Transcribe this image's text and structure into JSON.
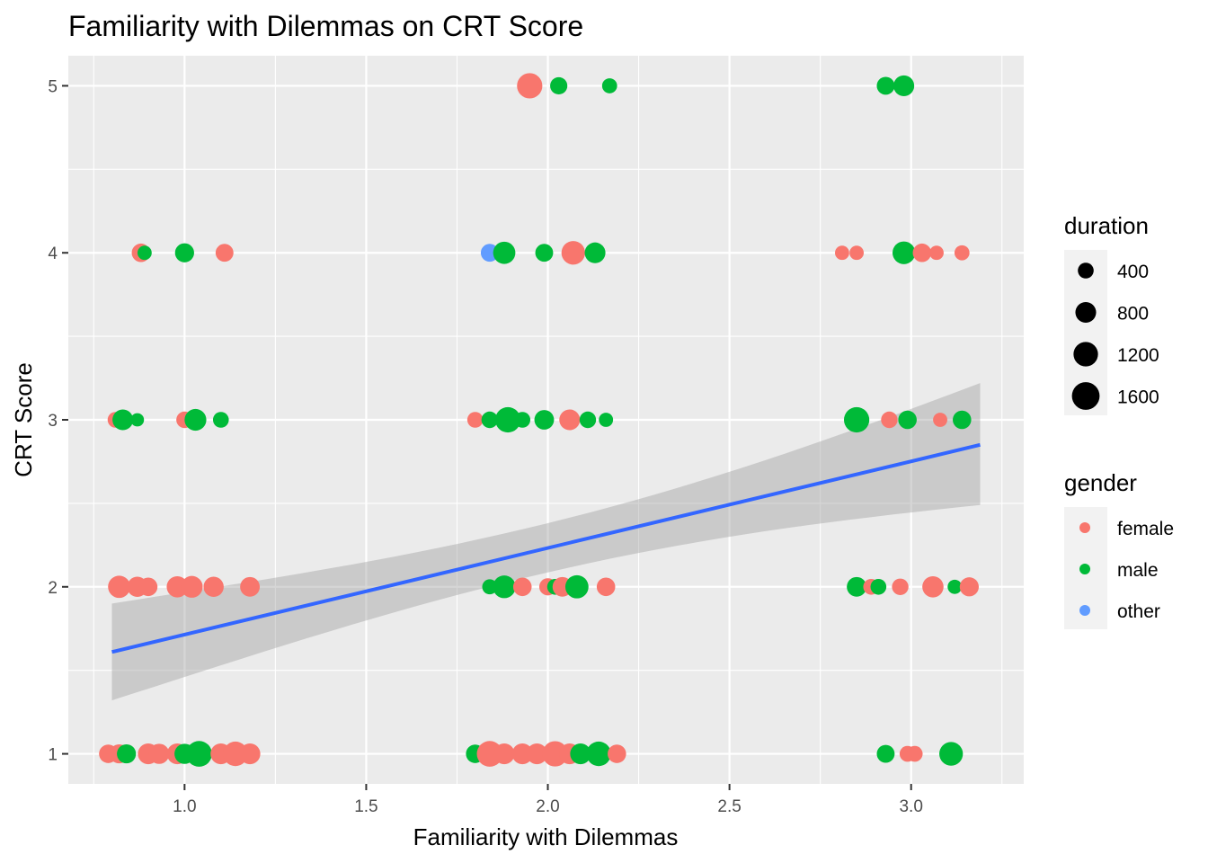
{
  "chart_data": {
    "type": "scatter",
    "title": "Familiarity with Dilemmas on CRT Score",
    "xlabel": "Familiarity with Dilemmas",
    "ylabel": "CRT Score",
    "xlim": [
      0.68,
      3.31
    ],
    "ylim": [
      0.82,
      5.18
    ],
    "x_ticks": [
      1.0,
      1.5,
      2.0,
      2.5,
      3.0
    ],
    "x_tick_labels": [
      "1.0",
      "1.5",
      "2.0",
      "2.5",
      "3.0"
    ],
    "y_ticks": [
      1,
      2,
      3,
      4,
      5
    ],
    "y_tick_labels": [
      "1",
      "2",
      "3",
      "4",
      "5"
    ],
    "grid": true,
    "legend_position": "right",
    "colors": {
      "female": "#F8766D",
      "male": "#00BA38",
      "other": "#619CFF",
      "fit_line": "#3366FF",
      "ribbon": "#999999",
      "panel": "#EBEBEB",
      "grid": "#FFFFFF"
    },
    "size_legend": {
      "title": "duration",
      "values": [
        400,
        800,
        1200,
        1600
      ],
      "labels": [
        "400",
        "800",
        "1200",
        "1600"
      ]
    },
    "color_legend": {
      "title": "gender",
      "labels": [
        "female",
        "male",
        "other"
      ]
    },
    "fit": {
      "method": "lm",
      "x_range": [
        0.8,
        3.19
      ],
      "y_start": 1.61,
      "y_end": 2.85,
      "ci_lower_start": 1.32,
      "ci_upper_start": 1.9,
      "ci_lower_end": 2.49,
      "ci_upper_end": 3.22
    },
    "points": [
      {
        "x": 1.95,
        "y": 5,
        "gender": "female",
        "duration": 1300
      },
      {
        "x": 2.03,
        "y": 5,
        "gender": "male",
        "duration": 500
      },
      {
        "x": 2.17,
        "y": 5,
        "gender": "male",
        "duration": 350
      },
      {
        "x": 2.93,
        "y": 5,
        "gender": "male",
        "duration": 550
      },
      {
        "x": 2.98,
        "y": 5,
        "gender": "male",
        "duration": 800
      },
      {
        "x": 0.88,
        "y": 4,
        "gender": "female",
        "duration": 600
      },
      {
        "x": 0.89,
        "y": 4,
        "gender": "male",
        "duration": 300
      },
      {
        "x": 1.0,
        "y": 4,
        "gender": "male",
        "duration": 650
      },
      {
        "x": 1.11,
        "y": 4,
        "gender": "female",
        "duration": 550
      },
      {
        "x": 1.84,
        "y": 4,
        "gender": "other",
        "duration": 550
      },
      {
        "x": 1.88,
        "y": 4,
        "gender": "male",
        "duration": 950
      },
      {
        "x": 1.99,
        "y": 4,
        "gender": "male",
        "duration": 550
      },
      {
        "x": 2.07,
        "y": 4,
        "gender": "female",
        "duration": 1100
      },
      {
        "x": 2.13,
        "y": 4,
        "gender": "male",
        "duration": 800
      },
      {
        "x": 2.81,
        "y": 4,
        "gender": "female",
        "duration": 300
      },
      {
        "x": 2.85,
        "y": 4,
        "gender": "female",
        "duration": 300
      },
      {
        "x": 2.98,
        "y": 4,
        "gender": "male",
        "duration": 1000
      },
      {
        "x": 3.03,
        "y": 4,
        "gender": "female",
        "duration": 600
      },
      {
        "x": 3.07,
        "y": 4,
        "gender": "female",
        "duration": 300
      },
      {
        "x": 3.14,
        "y": 4,
        "gender": "female",
        "duration": 350
      },
      {
        "x": 0.81,
        "y": 3,
        "gender": "female",
        "duration": 400
      },
      {
        "x": 0.83,
        "y": 3,
        "gender": "male",
        "duration": 800
      },
      {
        "x": 0.87,
        "y": 3,
        "gender": "male",
        "duration": 250
      },
      {
        "x": 1.0,
        "y": 3,
        "gender": "female",
        "duration": 450
      },
      {
        "x": 1.03,
        "y": 3,
        "gender": "male",
        "duration": 900
      },
      {
        "x": 1.1,
        "y": 3,
        "gender": "male",
        "duration": 400
      },
      {
        "x": 1.8,
        "y": 3,
        "gender": "female",
        "duration": 400
      },
      {
        "x": 1.84,
        "y": 3,
        "gender": "male",
        "duration": 450
      },
      {
        "x": 1.89,
        "y": 3,
        "gender": "male",
        "duration": 1300
      },
      {
        "x": 1.93,
        "y": 3,
        "gender": "male",
        "duration": 400
      },
      {
        "x": 1.99,
        "y": 3,
        "gender": "male",
        "duration": 700
      },
      {
        "x": 2.06,
        "y": 3,
        "gender": "female",
        "duration": 800
      },
      {
        "x": 2.11,
        "y": 3,
        "gender": "male",
        "duration": 450
      },
      {
        "x": 2.16,
        "y": 3,
        "gender": "male",
        "duration": 300
      },
      {
        "x": 2.85,
        "y": 3,
        "gender": "male",
        "duration": 1300
      },
      {
        "x": 2.94,
        "y": 3,
        "gender": "female",
        "duration": 450
      },
      {
        "x": 2.99,
        "y": 3,
        "gender": "male",
        "duration": 600
      },
      {
        "x": 3.08,
        "y": 3,
        "gender": "female",
        "duration": 300
      },
      {
        "x": 3.14,
        "y": 3,
        "gender": "male",
        "duration": 600
      },
      {
        "x": 0.82,
        "y": 2,
        "gender": "other",
        "duration": 900
      },
      {
        "x": 0.82,
        "y": 2,
        "gender": "female",
        "duration": 950
      },
      {
        "x": 0.87,
        "y": 2,
        "gender": "female",
        "duration": 750
      },
      {
        "x": 0.9,
        "y": 2,
        "gender": "female",
        "duration": 600
      },
      {
        "x": 0.98,
        "y": 2,
        "gender": "female",
        "duration": 850
      },
      {
        "x": 1.02,
        "y": 2,
        "gender": "female",
        "duration": 900
      },
      {
        "x": 1.08,
        "y": 2,
        "gender": "female",
        "duration": 750
      },
      {
        "x": 1.18,
        "y": 2,
        "gender": "female",
        "duration": 700
      },
      {
        "x": 1.84,
        "y": 2,
        "gender": "male",
        "duration": 350
      },
      {
        "x": 1.88,
        "y": 2,
        "gender": "male",
        "duration": 1000
      },
      {
        "x": 1.93,
        "y": 2,
        "gender": "female",
        "duration": 600
      },
      {
        "x": 2.0,
        "y": 2,
        "gender": "female",
        "duration": 500
      },
      {
        "x": 2.02,
        "y": 2,
        "gender": "male",
        "duration": 400
      },
      {
        "x": 2.04,
        "y": 2,
        "gender": "female",
        "duration": 700
      },
      {
        "x": 2.08,
        "y": 2,
        "gender": "male",
        "duration": 1050
      },
      {
        "x": 2.16,
        "y": 2,
        "gender": "female",
        "duration": 600
      },
      {
        "x": 2.85,
        "y": 2,
        "gender": "male",
        "duration": 700
      },
      {
        "x": 2.89,
        "y": 2,
        "gender": "female",
        "duration": 400
      },
      {
        "x": 2.91,
        "y": 2,
        "gender": "male",
        "duration": 400
      },
      {
        "x": 2.97,
        "y": 2,
        "gender": "female",
        "duration": 450
      },
      {
        "x": 3.06,
        "y": 2,
        "gender": "female",
        "duration": 850
      },
      {
        "x": 3.12,
        "y": 2,
        "gender": "male",
        "duration": 300
      },
      {
        "x": 3.16,
        "y": 2,
        "gender": "female",
        "duration": 650
      },
      {
        "x": 0.79,
        "y": 1,
        "gender": "female",
        "duration": 600
      },
      {
        "x": 0.82,
        "y": 1,
        "gender": "female",
        "duration": 650
      },
      {
        "x": 0.84,
        "y": 1,
        "gender": "male",
        "duration": 650
      },
      {
        "x": 0.9,
        "y": 1,
        "gender": "female",
        "duration": 800
      },
      {
        "x": 0.93,
        "y": 1,
        "gender": "female",
        "duration": 750
      },
      {
        "x": 0.98,
        "y": 1,
        "gender": "female",
        "duration": 800
      },
      {
        "x": 1.0,
        "y": 1,
        "gender": "male",
        "duration": 750
      },
      {
        "x": 1.04,
        "y": 1,
        "gender": "male",
        "duration": 1350
      },
      {
        "x": 1.1,
        "y": 1,
        "gender": "female",
        "duration": 800
      },
      {
        "x": 1.14,
        "y": 1,
        "gender": "female",
        "duration": 1200
      },
      {
        "x": 1.18,
        "y": 1,
        "gender": "female",
        "duration": 800
      },
      {
        "x": 1.8,
        "y": 1,
        "gender": "male",
        "duration": 600
      },
      {
        "x": 1.84,
        "y": 1,
        "gender": "female",
        "duration": 1350
      },
      {
        "x": 1.88,
        "y": 1,
        "gender": "female",
        "duration": 800
      },
      {
        "x": 1.93,
        "y": 1,
        "gender": "female",
        "duration": 800
      },
      {
        "x": 1.97,
        "y": 1,
        "gender": "female",
        "duration": 800
      },
      {
        "x": 2.02,
        "y": 1,
        "gender": "female",
        "duration": 1300
      },
      {
        "x": 2.06,
        "y": 1,
        "gender": "female",
        "duration": 800
      },
      {
        "x": 2.09,
        "y": 1,
        "gender": "male",
        "duration": 800
      },
      {
        "x": 2.14,
        "y": 1,
        "gender": "male",
        "duration": 1200
      },
      {
        "x": 2.19,
        "y": 1,
        "gender": "female",
        "duration": 600
      },
      {
        "x": 2.93,
        "y": 1,
        "gender": "male",
        "duration": 550
      },
      {
        "x": 2.99,
        "y": 1,
        "gender": "female",
        "duration": 400
      },
      {
        "x": 3.01,
        "y": 1,
        "gender": "female",
        "duration": 400
      },
      {
        "x": 3.11,
        "y": 1,
        "gender": "male",
        "duration": 1100
      }
    ]
  }
}
